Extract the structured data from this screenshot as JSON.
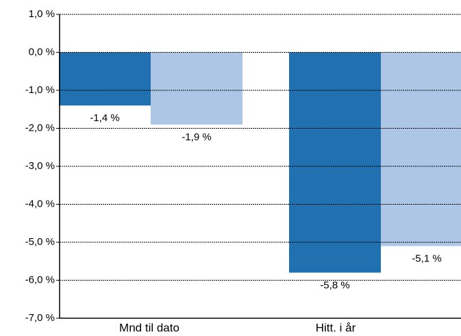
{
  "chart_data": {
    "type": "bar",
    "categories": [
      "Mnd til dato",
      "Hitt. i år"
    ],
    "series": [
      {
        "color": "#2171b1",
        "values": [
          -1.4,
          -5.8
        ],
        "value_labels": [
          "-1,4 %",
          "-5,8 %"
        ]
      },
      {
        "color": "#aec6e6",
        "values": [
          -1.9,
          -5.1
        ],
        "value_labels": [
          "-1,9 %",
          "-5,1 %"
        ]
      }
    ],
    "ylim": [
      -7,
      1
    ],
    "yticks": [
      {
        "value": 1,
        "label": "1,0 %"
      },
      {
        "value": 0,
        "label": "0,0 %"
      },
      {
        "value": -1,
        "label": "-1,0 %"
      },
      {
        "value": -2,
        "label": "-2,0 %"
      },
      {
        "value": -3,
        "label": "-3,0 %"
      },
      {
        "value": -4,
        "label": "-4,0 %"
      },
      {
        "value": -5,
        "label": "-5,0 %"
      },
      {
        "value": -6,
        "label": "-6,0 %"
      },
      {
        "value": -7,
        "label": "-7,0 %"
      }
    ],
    "grid": true
  }
}
